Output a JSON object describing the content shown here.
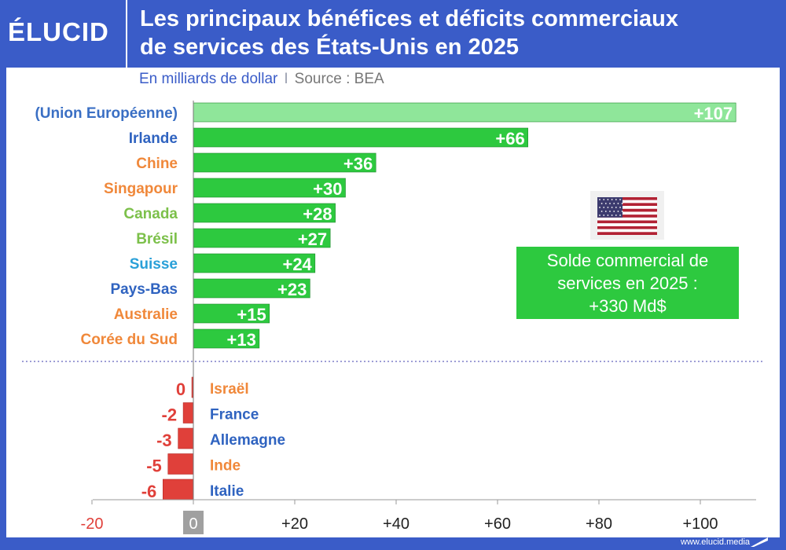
{
  "header": {
    "logo": "ÉLUCID",
    "title_line1": "Les principaux bénéfices et déficits commerciaux",
    "title_line2": "de services des États-Unis en 2025"
  },
  "subtitle": {
    "units": "En milliards de dollar",
    "separator": "I",
    "source": "Source : BEA"
  },
  "callout": {
    "line1": "Solde commercial de",
    "line2": "services en 2025 :",
    "line3": "+330 Md$"
  },
  "footer": {
    "url": "www.elucid.media"
  },
  "colors": {
    "brand_blue": "#3a5cc8",
    "surplus_green": "#2dc93f",
    "eu_light_green": "#8fe69a",
    "deficit_red": "#e0403a",
    "axis_grey": "#9a9a9a"
  },
  "chart_data": {
    "type": "bar",
    "orientation": "horizontal",
    "xlim": [
      -20,
      110
    ],
    "xticks": [
      -20,
      0,
      20,
      40,
      60,
      80,
      100
    ],
    "xtick_labels": [
      "-20",
      "0",
      "+20",
      "+40",
      "+60",
      "+80",
      "+100"
    ],
    "grid": false,
    "surplus": [
      {
        "label": "(Union Européenne)",
        "value": 107,
        "value_label": "+107",
        "label_color": "#3a6fc4",
        "bar_color": "#8fe69a"
      },
      {
        "label": "Irlande",
        "value": 66,
        "value_label": "+66",
        "label_color": "#2f63c0",
        "bar_color": "#2dc93f"
      },
      {
        "label": "Chine",
        "value": 36,
        "value_label": "+36",
        "label_color": "#f0883a",
        "bar_color": "#2dc93f"
      },
      {
        "label": "Singapour",
        "value": 30,
        "value_label": "+30",
        "label_color": "#f0883a",
        "bar_color": "#2dc93f"
      },
      {
        "label": "Canada",
        "value": 28,
        "value_label": "+28",
        "label_color": "#7cc04a",
        "bar_color": "#2dc93f"
      },
      {
        "label": "Brésil",
        "value": 27,
        "value_label": "+27",
        "label_color": "#7cc04a",
        "bar_color": "#2dc93f"
      },
      {
        "label": "Suisse",
        "value": 24,
        "value_label": "+24",
        "label_color": "#2aa0d8",
        "bar_color": "#2dc93f"
      },
      {
        "label": "Pays-Bas",
        "value": 23,
        "value_label": "+23",
        "label_color": "#2f63c0",
        "bar_color": "#2dc93f"
      },
      {
        "label": "Australie",
        "value": 15,
        "value_label": "+15",
        "label_color": "#f0883a",
        "bar_color": "#2dc93f"
      },
      {
        "label": "Corée du Sud",
        "value": 13,
        "value_label": "+13",
        "label_color": "#f0883a",
        "bar_color": "#2dc93f"
      }
    ],
    "deficit": [
      {
        "label": "Israël",
        "value": -0.3,
        "value_label": "0",
        "label_color": "#f0883a",
        "bar_color": "#e0403a"
      },
      {
        "label": "France",
        "value": -2,
        "value_label": "-2",
        "label_color": "#2f63c0",
        "bar_color": "#e0403a"
      },
      {
        "label": "Allemagne",
        "value": -3,
        "value_label": "-3",
        "label_color": "#2f63c0",
        "bar_color": "#e0403a"
      },
      {
        "label": "Inde",
        "value": -5,
        "value_label": "-5",
        "label_color": "#f0883a",
        "bar_color": "#e0403a"
      },
      {
        "label": "Italie",
        "value": -6,
        "value_label": "-6",
        "label_color": "#2f63c0",
        "bar_color": "#e0403a"
      }
    ]
  }
}
